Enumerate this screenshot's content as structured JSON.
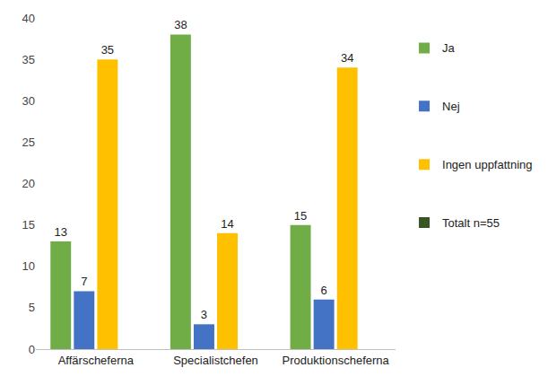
{
  "chart_data": {
    "type": "bar",
    "categories": [
      "Affärscheferna",
      "Specialistchefen",
      "Produktionscheferna"
    ],
    "series": [
      {
        "name": "Ja",
        "color": "#70ad47",
        "values": [
          13,
          38,
          15
        ]
      },
      {
        "name": "Nej",
        "color": "#4472c4",
        "values": [
          7,
          3,
          6
        ]
      },
      {
        "name": "Ingen uppfattning",
        "color": "#ffc000",
        "values": [
          35,
          14,
          34
        ]
      },
      {
        "name": "Totalt n=55",
        "color": "#375623",
        "values": [
          null,
          null,
          null
        ]
      }
    ],
    "ylim": [
      0,
      40
    ],
    "yticks": [
      0,
      5,
      10,
      15,
      20,
      25,
      30,
      35,
      40
    ],
    "grid": false,
    "legend": "right",
    "data_labels": true
  }
}
